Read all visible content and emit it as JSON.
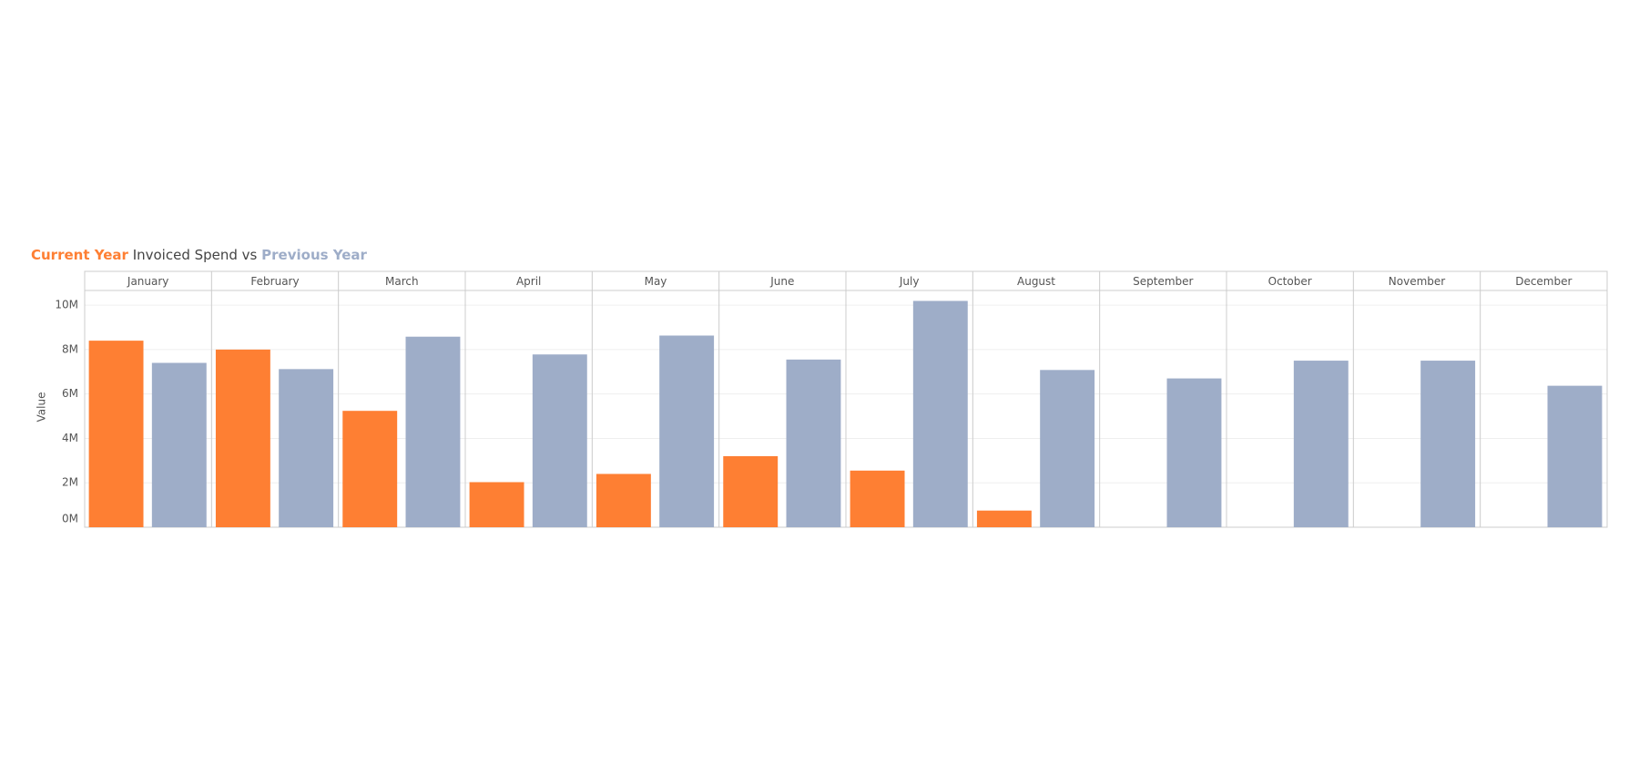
{
  "chart_data": {
    "type": "bar",
    "title": "Invoiced Spend vs",
    "y_label": "Value",
    "categories": [
      "January",
      "February",
      "March",
      "April",
      "May",
      "June",
      "July",
      "August",
      "September",
      "October",
      "November",
      "December"
    ],
    "series": [
      {
        "name": "Current Year",
        "color": "#fe7f33",
        "values": [
          8.4,
          8.0,
          5.24,
          2.03,
          2.4,
          3.2,
          2.55,
          0.75,
          null,
          null,
          null,
          null
        ]
      },
      {
        "name": "Previous Year",
        "color": "#9eadc8",
        "values": [
          7.4,
          7.12,
          8.58,
          7.78,
          8.63,
          7.55,
          10.19,
          7.08,
          6.7,
          7.5,
          7.5,
          6.37
        ]
      }
    ],
    "ylim": [
      0,
      10.66
    ],
    "yticks": [
      {
        "value": 0,
        "label": "0M"
      },
      {
        "value": 2,
        "label": "2M"
      },
      {
        "value": 4,
        "label": "4M"
      },
      {
        "value": 6,
        "label": "6M"
      },
      {
        "value": 8,
        "label": "8M"
      },
      {
        "value": 10,
        "label": "10M"
      }
    ],
    "grid": true
  }
}
